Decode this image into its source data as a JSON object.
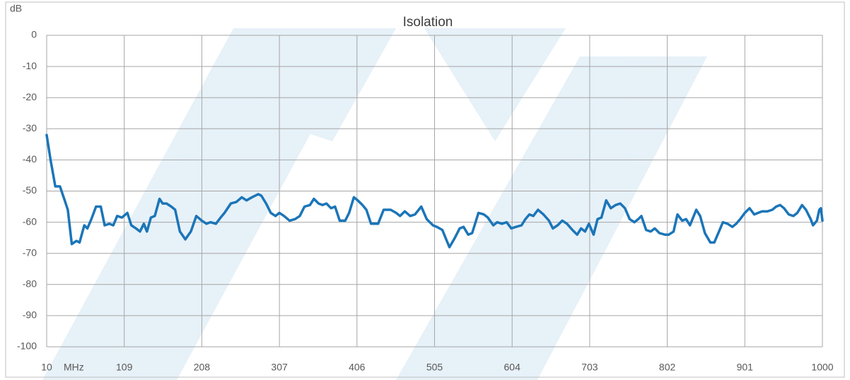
{
  "chart_data": {
    "type": "line",
    "title": "Isolation",
    "ylabel": "dB",
    "xlabel": "MHz",
    "xlim": [
      10,
      1000
    ],
    "xticks": [
      10,
      109,
      208,
      307,
      406,
      505,
      604,
      703,
      802,
      901,
      1000
    ],
    "ylim": [
      -100,
      0
    ],
    "yticks": [
      0,
      -10,
      -20,
      -30,
      -40,
      -50,
      -60,
      -70,
      -80,
      -90,
      -100
    ],
    "grid": true,
    "x": [
      10,
      15,
      21,
      27,
      33,
      37,
      42,
      48,
      52,
      58,
      62,
      67,
      73,
      79,
      84,
      90,
      95,
      100,
      106,
      113,
      118,
      124,
      129,
      134,
      138,
      143,
      148,
      154,
      158,
      163,
      169,
      174,
      180,
      187,
      194,
      201,
      208,
      214,
      219,
      226,
      232,
      237,
      245,
      252,
      259,
      265,
      272,
      280,
      284,
      290,
      296,
      302,
      307,
      313,
      320,
      327,
      333,
      339,
      346,
      351,
      357,
      362,
      367,
      373,
      378,
      384,
      391,
      396,
      402,
      407,
      413,
      418,
      424,
      433,
      440,
      449,
      456,
      461,
      467,
      474,
      480,
      488,
      495,
      503,
      508,
      515,
      519,
      524,
      531,
      537,
      542,
      548,
      553,
      561,
      568,
      573,
      580,
      585,
      591,
      597,
      603,
      609,
      616,
      621,
      626,
      631,
      637,
      644,
      651,
      656,
      662,
      668,
      674,
      681,
      687,
      692,
      697,
      702,
      708,
      713,
      718,
      724,
      730,
      736,
      742,
      748,
      754,
      760,
      765,
      769,
      775,
      781,
      786,
      792,
      799,
      804,
      810,
      815,
      821,
      826,
      831,
      839,
      844,
      850,
      857,
      862,
      868,
      873,
      879,
      885,
      890,
      895,
      901,
      907,
      913,
      918,
      923,
      930,
      936,
      941,
      946,
      951,
      957,
      963,
      968,
      974,
      979,
      985,
      988,
      993,
      996,
      998,
      1000
    ],
    "series": [
      {
        "name": "Isolation",
        "color": "#1b75b8",
        "values": [
          -32,
          -40,
          -48.5,
          -48.5,
          -53,
          -56,
          -67,
          -66,
          -66.5,
          -61,
          -62,
          -59,
          -55,
          -55,
          -61,
          -60.5,
          -61,
          -58,
          -58.5,
          -57,
          -61,
          -62,
          -63,
          -60.5,
          -63,
          -58.5,
          -58,
          -52.5,
          -54,
          -54,
          -55,
          -56,
          -63,
          -65.5,
          -63,
          -58,
          -59.5,
          -60.5,
          -60,
          -60.5,
          -58.5,
          -57,
          -54,
          -53.5,
          -52,
          -53,
          -52,
          -51,
          -51.5,
          -54,
          -57,
          -58,
          -57,
          -58,
          -59.5,
          -59,
          -58,
          -55,
          -54.5,
          -52.5,
          -54,
          -54.5,
          -54,
          -55.5,
          -55,
          -59.5,
          -59.5,
          -57,
          -52,
          -53,
          -54.5,
          -56,
          -60.5,
          -60.5,
          -56,
          -56,
          -57,
          -58,
          -56.5,
          -58,
          -57.5,
          -55,
          -59,
          -61,
          -61.5,
          -62.5,
          -65,
          -68,
          -65,
          -62,
          -61.5,
          -64,
          -63.5,
          -57,
          -57.5,
          -58.5,
          -61,
          -60,
          -60.5,
          -60,
          -62,
          -61.5,
          -61,
          -59,
          -57.5,
          -58,
          -56,
          -57.5,
          -59.5,
          -62,
          -61,
          -59.5,
          -60.5,
          -62.5,
          -64,
          -62,
          -63,
          -60.5,
          -64,
          -59,
          -58.5,
          -53,
          -55.5,
          -54.5,
          -54,
          -55.5,
          -59,
          -60,
          -59,
          -58,
          -62.5,
          -63,
          -62,
          -63.5,
          -64,
          -64,
          -63,
          -57.5,
          -59.5,
          -59,
          -61,
          -56,
          -58,
          -63.5,
          -66.5,
          -66.5,
          -63,
          -60,
          -60.5,
          -61.5,
          -60.5,
          -59,
          -57,
          -55.5,
          -57.5,
          -57,
          -56.5,
          -56.5,
          -56,
          -55,
          -54.5,
          -55.5,
          -57.5,
          -58,
          -57,
          -54.5,
          -56,
          -59,
          -61,
          -59.5,
          -56,
          -55.5,
          -59.5
        ]
      }
    ]
  }
}
